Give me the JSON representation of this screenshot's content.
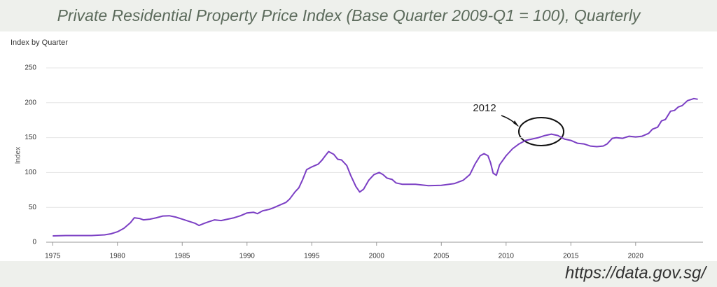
{
  "chart_data": {
    "type": "line",
    "title": "Private Residential Property Price Index (Base Quarter 2009-Q1 = 100), Quarterly",
    "subtitle": "Index by Quarter",
    "y_label": "Index",
    "source": "https://data.gov.sg/",
    "annotation": "2012",
    "color": "#7b3fc4",
    "grid": true,
    "xlim": [
      1974.5,
      2025.2
    ],
    "ylim": [
      0,
      250
    ],
    "xticks": [
      1975,
      1980,
      1985,
      1990,
      1995,
      2000,
      2005,
      2010,
      2015,
      2020
    ],
    "yticks": [
      0,
      50,
      100,
      150,
      200,
      250
    ],
    "x": [
      1975,
      1976,
      1977,
      1978,
      1979,
      1979.5,
      1980,
      1980.5,
      1981,
      1981.3,
      1981.7,
      1982,
      1982.5,
      1983,
      1983.5,
      1984,
      1984.5,
      1985,
      1985.5,
      1986,
      1986.3,
      1986.7,
      1987,
      1987.5,
      1988,
      1988.5,
      1989,
      1989.5,
      1990,
      1990.5,
      1990.8,
      1991.2,
      1991.7,
      1992,
      1992.5,
      1993,
      1993.3,
      1993.7,
      1994,
      1994.3,
      1994.6,
      1995,
      1995.5,
      1995.8,
      1996,
      1996.3,
      1996.7,
      1997,
      1997.3,
      1997.7,
      1998,
      1998.4,
      1998.7,
      1999,
      1999.4,
      1999.8,
      2000.2,
      2000.5,
      2000.8,
      2001.2,
      2001.5,
      2002,
      2003,
      2004,
      2005,
      2006,
      2006.7,
      2007.2,
      2007.6,
      2008,
      2008.3,
      2008.6,
      2008.8,
      2009,
      2009.25,
      2009.5,
      2010,
      2010.5,
      2011,
      2011.5,
      2012,
      2012.5,
      2013,
      2013.5,
      2014,
      2014.5,
      2015,
      2015.5,
      2016,
      2016.5,
      2017,
      2017.5,
      2017.8,
      2018.2,
      2018.5,
      2019,
      2019.5,
      2020,
      2020.5,
      2021,
      2021.3,
      2021.7,
      2022,
      2022.3,
      2022.7,
      2023,
      2023.3,
      2023.6,
      2024,
      2024.5,
      2024.8
    ],
    "values": [
      9,
      9.5,
      9.5,
      9.5,
      10.5,
      12,
      15,
      20,
      28,
      35,
      34,
      32,
      33,
      35,
      37.5,
      38,
      36,
      33,
      30,
      27,
      24,
      27,
      29,
      32,
      31,
      33,
      35,
      38,
      42,
      43,
      41,
      45,
      47,
      49,
      53,
      57,
      62,
      72,
      78,
      90,
      104,
      108,
      112,
      118,
      123,
      130,
      126,
      119,
      118,
      110,
      96,
      80,
      72,
      76,
      89,
      97,
      100,
      97,
      92,
      90,
      85,
      83,
      83,
      81,
      81.5,
      84,
      89,
      97,
      112,
      124,
      127,
      124,
      114,
      99,
      96,
      111,
      124,
      134,
      141,
      146,
      148,
      150,
      153,
      155,
      153,
      148,
      146,
      142,
      141,
      138,
      137,
      138,
      141,
      149,
      150,
      149,
      152,
      151,
      152,
      156,
      162,
      165,
      174,
      176,
      188,
      189,
      194,
      196,
      203,
      206,
      205
    ]
  }
}
